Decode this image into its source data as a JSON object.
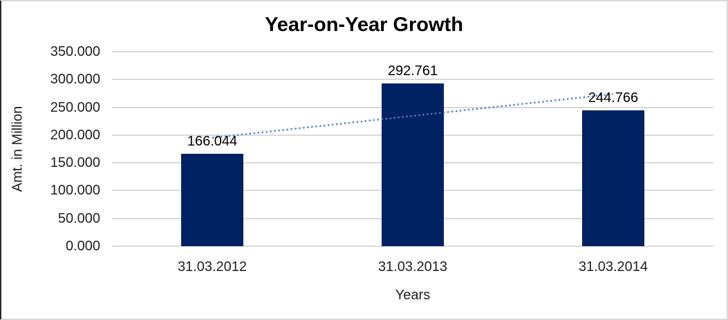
{
  "chart_data": {
    "type": "bar",
    "title": "Year-on-Year Growth",
    "categories": [
      "31.03.2012",
      "31.03.2013",
      "31.03.2014"
    ],
    "values": [
      166.044,
      292.761,
      244.766
    ],
    "value_labels": [
      "166.044",
      "292.761",
      "244.766"
    ],
    "xlabel": "Years",
    "ylabel": "Amt. in Million",
    "ylim": [
      0,
      350
    ],
    "ytick_step": 50,
    "ytick_labels": [
      "0.000",
      "50.000",
      "100.000",
      "150.000",
      "200.000",
      "250.000",
      "300.000",
      "350.000"
    ],
    "grid": true,
    "legend": "none",
    "trendline": {
      "type": "linear",
      "style": "dotted"
    },
    "colors": {
      "bar": "#002263",
      "trendline": "#4F81BD",
      "gridline": "#D9D9D9",
      "title_text": "#000000",
      "axis_text": "#1F1F1F",
      "frame_border": "#D9D9D9",
      "frame_border_left": "#2B2B2B",
      "background": "#FFFFFF"
    }
  }
}
